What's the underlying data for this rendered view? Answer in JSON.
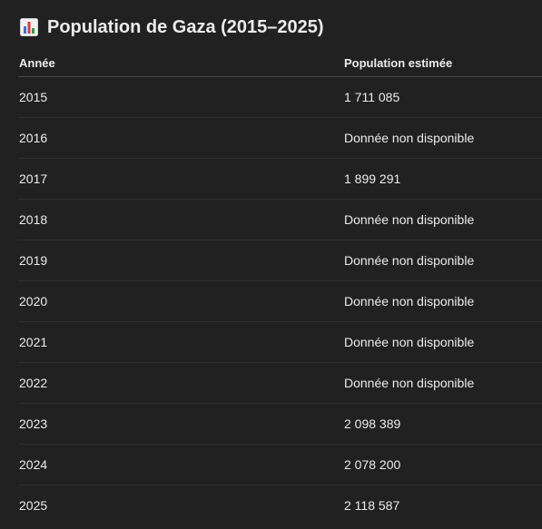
{
  "page": {
    "title": "Population de Gaza (2015–2025)",
    "title_icon": "bar-chart-icon"
  },
  "table": {
    "headers": [
      "Année",
      "Population estimée"
    ],
    "rows": [
      {
        "year": "2015",
        "population": "1 711 085"
      },
      {
        "year": "2016",
        "population": "Donnée non disponible"
      },
      {
        "year": "2017",
        "population": "1 899 291"
      },
      {
        "year": "2018",
        "population": "Donnée non disponible"
      },
      {
        "year": "2019",
        "population": "Donnée non disponible"
      },
      {
        "year": "2020",
        "population": "Donnée non disponible"
      },
      {
        "year": "2021",
        "population": "Donnée non disponible"
      },
      {
        "year": "2022",
        "population": "Donnée non disponible"
      },
      {
        "year": "2023",
        "population": "2 098 389"
      },
      {
        "year": "2024",
        "population": "2 078 200"
      },
      {
        "year": "2025",
        "population": "2 118 587"
      }
    ]
  },
  "colors": {
    "background": "#212121",
    "text": "#ececec",
    "header_divider": "#4a4a4a",
    "row_divider": "#2f2f2f"
  }
}
